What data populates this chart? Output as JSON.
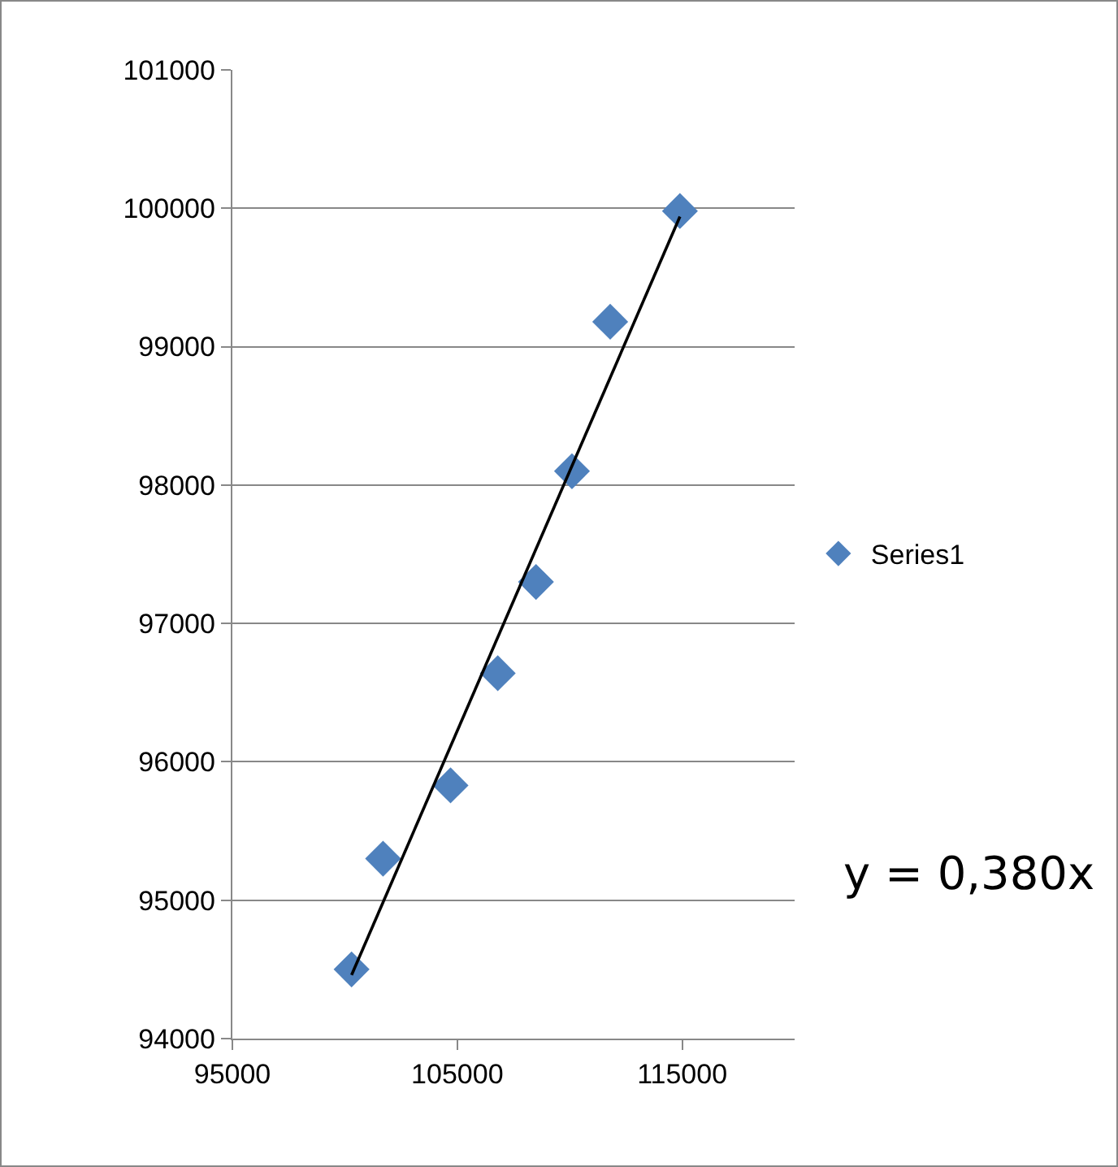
{
  "chart_data": {
    "type": "scatter",
    "marker": "diamond",
    "grid": "y",
    "legend": "right",
    "xlim": [
      95000,
      120000
    ],
    "xticks": [
      95000,
      105000,
      115000
    ],
    "ylim": [
      94000,
      101000
    ],
    "yticks": [
      94000,
      95000,
      96000,
      97000,
      98000,
      99000,
      100000,
      101000
    ],
    "series": [
      {
        "name": "Series1",
        "color": "#4f81bd",
        "x": [
          100300,
          101700,
          104700,
          106800,
          108500,
          110100,
          111800,
          114900
        ],
        "values": [
          94500,
          95300,
          95830,
          96640,
          97300,
          98100,
          99180,
          99980
        ]
      },
      {
        "type": "line",
        "marker": "none",
        "color": "#000000",
        "x": [
          100300,
          114900
        ],
        "values": [
          94460,
          99940
        ]
      }
    ],
    "annotations": [
      "y = 0,380x"
    ]
  }
}
